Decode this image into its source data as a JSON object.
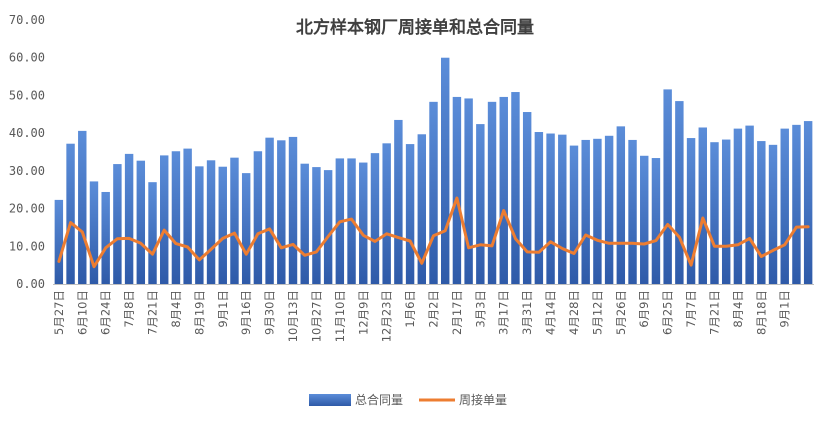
{
  "chart_data": {
    "type": "bar",
    "title": "北方样本钢厂周接单和总合同量",
    "ylim": [
      0,
      70
    ],
    "yticks": [
      "0.00",
      "10.00",
      "20.00",
      "30.00",
      "40.00",
      "50.00",
      "60.00",
      "70.00"
    ],
    "grid": false,
    "legend_position": "bottom",
    "x_tick_labels": [
      "5月27日",
      "6月10日",
      "6月24日",
      "7月8日",
      "7月21日",
      "8月4日",
      "8月19日",
      "9月1日",
      "9月16日",
      "9月30日",
      "10月13日",
      "10月27日",
      "11月10日",
      "12月9日",
      "12月23日",
      "1月6日",
      "2月2日",
      "2月17日",
      "3月3日",
      "3月17日",
      "3月31日",
      "4月14日",
      "4月28日",
      "5月12日",
      "5月26日",
      "6月9日",
      "6月25日",
      "7月7日",
      "7月21日",
      "8月4日",
      "8月18日",
      "9月1日"
    ],
    "series": [
      {
        "name": "总合同量",
        "type": "bar",
        "color": "#4472C4",
        "values": [
          22.3,
          37.2,
          40.6,
          27.2,
          24.4,
          31.8,
          34.5,
          32.7,
          27.0,
          34.1,
          35.2,
          35.9,
          31.2,
          32.8,
          31.1,
          33.5,
          29.4,
          35.2,
          38.8,
          38.1,
          39.0,
          31.9,
          31.0,
          30.2,
          33.3,
          33.3,
          32.2,
          34.7,
          37.3,
          43.5,
          37.1,
          39.7,
          48.3,
          60.0,
          49.6,
          49.2,
          42.4,
          48.3,
          49.6,
          50.9,
          45.6,
          40.3,
          39.9,
          39.6,
          36.7,
          38.2,
          38.5,
          39.3,
          41.8,
          38.2,
          34.0,
          33.4,
          51.6,
          48.5,
          38.7,
          41.5,
          37.6,
          38.3,
          41.2,
          42.0,
          37.9,
          36.9,
          41.2,
          42.2,
          43.2
        ]
      },
      {
        "name": "周接单量",
        "type": "line",
        "color": "#ED7D31",
        "values": [
          6.0,
          16.3,
          13.8,
          4.6,
          9.6,
          12.0,
          12.1,
          10.8,
          7.9,
          14.3,
          10.7,
          9.8,
          6.4,
          9.2,
          12.1,
          13.5,
          7.9,
          13.3,
          14.6,
          9.6,
          10.5,
          7.6,
          8.5,
          12.6,
          16.5,
          17.2,
          12.9,
          11.3,
          13.3,
          12.3,
          11.4,
          5.5,
          12.8,
          14.1,
          22.8,
          9.6,
          10.4,
          10.1,
          19.5,
          12.0,
          8.5,
          8.4,
          11.2,
          9.4,
          8.1,
          13.0,
          11.6,
          10.8,
          10.8,
          10.8,
          10.6,
          11.5,
          15.8,
          12.4,
          5.0,
          17.5,
          10.0,
          10.0,
          10.4,
          12.1,
          7.3,
          8.9,
          10.4,
          15.1,
          15.2
        ]
      }
    ]
  }
}
